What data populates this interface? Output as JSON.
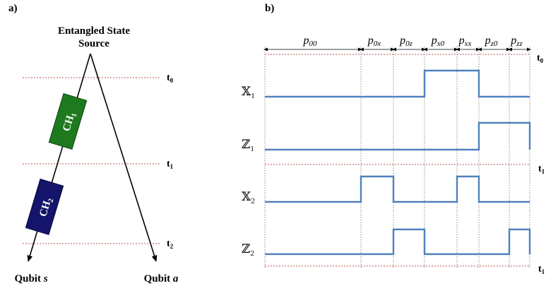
{
  "panel_a": {
    "label": "a)",
    "source_line1": "Entangled State",
    "source_line2": "Source",
    "channels": [
      {
        "name": "CH",
        "sub": "1",
        "color": "#1f7a1f"
      },
      {
        "name": "CH",
        "sub": "2",
        "color": "#14146b"
      }
    ],
    "times": [
      {
        "name": "t",
        "sub": "0"
      },
      {
        "name": "t",
        "sub": "1"
      },
      {
        "name": "t",
        "sub": "2"
      }
    ],
    "qubit_s": {
      "prefix": "Qubit ",
      "var": "s"
    },
    "qubit_a": {
      "prefix": "Qubit ",
      "var": "a"
    }
  },
  "panel_b": {
    "label": "b)",
    "intervals": [
      {
        "p": "p",
        "sub": "00"
      },
      {
        "p": "p",
        "sub": "0x"
      },
      {
        "p": "p",
        "sub": "0z"
      },
      {
        "p": "p",
        "sub": "x0"
      },
      {
        "p": "p",
        "sub": "xx"
      },
      {
        "p": "p",
        "sub": "z0"
      },
      {
        "p": "p",
        "sub": "zz"
      }
    ],
    "rows": [
      {
        "sym": "𝕏",
        "sub": "1"
      },
      {
        "sym": "ℤ",
        "sub": "1"
      },
      {
        "sym": "𝕏",
        "sub": "2"
      },
      {
        "sym": "ℤ",
        "sub": "2"
      }
    ],
    "time_marks": [
      {
        "name": "t",
        "sub": "0"
      },
      {
        "name": "t",
        "sub": "1"
      },
      {
        "name": "t",
        "sub": "1"
      }
    ],
    "signals": [
      [
        0,
        0,
        0,
        1,
        1,
        0,
        0
      ],
      [
        0,
        0,
        0,
        0,
        0,
        1,
        1
      ],
      [
        0,
        1,
        0,
        0,
        1,
        0,
        0
      ],
      [
        0,
        0,
        1,
        0,
        0,
        0,
        1
      ]
    ],
    "colors": {
      "signal": "#4f81bd",
      "dashed_red": "#c0504d",
      "grid": "#8c8c8c"
    }
  }
}
